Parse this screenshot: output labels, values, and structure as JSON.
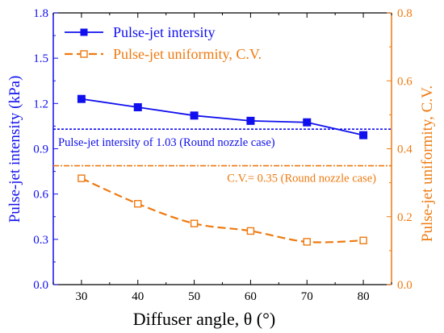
{
  "chart_data": {
    "type": "line",
    "xlabel": "Diffuser angle, θ (°)",
    "ylabel_left": "Pulse-jet intensity (kPa)",
    "ylabel_right": "Pulse-jet uniformity, C.V.",
    "xlim": [
      25,
      85
    ],
    "ylim_left": [
      0.0,
      1.8
    ],
    "ylim_right": [
      0.0,
      0.8
    ],
    "x_ticks": [
      30,
      40,
      50,
      60,
      70,
      80
    ],
    "x_tick_labels": [
      "30",
      "40",
      "50",
      "60",
      "70",
      "80"
    ],
    "y_left_ticks": [
      0.0,
      0.3,
      0.6,
      0.9,
      1.2,
      1.5,
      1.8
    ],
    "y_left_tick_labels": [
      "0.0",
      "0.3",
      "0.6",
      "0.9",
      "1.2",
      "1.5",
      "1.8"
    ],
    "y_right_ticks": [
      0.0,
      0.2,
      0.4,
      0.6,
      0.8
    ],
    "y_right_tick_labels": [
      "0.0",
      "0.2",
      "0.4",
      "0.6",
      "0.8"
    ],
    "grid": false,
    "legend_position": "top-left",
    "series": [
      {
        "name": "Pulse-jet intersity",
        "axis": "left",
        "x": [
          30,
          40,
          50,
          60,
          70,
          80
        ],
        "values": [
          1.23,
          1.175,
          1.12,
          1.085,
          1.075,
          0.99
        ],
        "color": "#1010ee",
        "marker": "filled-square",
        "line": "solid"
      },
      {
        "name": "Pulse-jet uniformity, C.V.",
        "axis": "right",
        "x": [
          30,
          40,
          50,
          60,
          70,
          80
        ],
        "values": [
          0.313,
          0.238,
          0.18,
          0.158,
          0.126,
          0.13
        ],
        "color": "#ee7a10",
        "marker": "open-square",
        "line": "dashed"
      }
    ],
    "reference_lines": [
      {
        "axis": "left",
        "value": 1.03,
        "label": "Pulse-jet intersity of 1.03 (Round nozzle case)",
        "color": "#1010ee",
        "style": "dotted"
      },
      {
        "axis": "right",
        "value": 0.35,
        "label": "C.V.= 0.35 (Round nozzle case)",
        "color": "#ee7a10",
        "style": "dash-dot"
      }
    ]
  }
}
